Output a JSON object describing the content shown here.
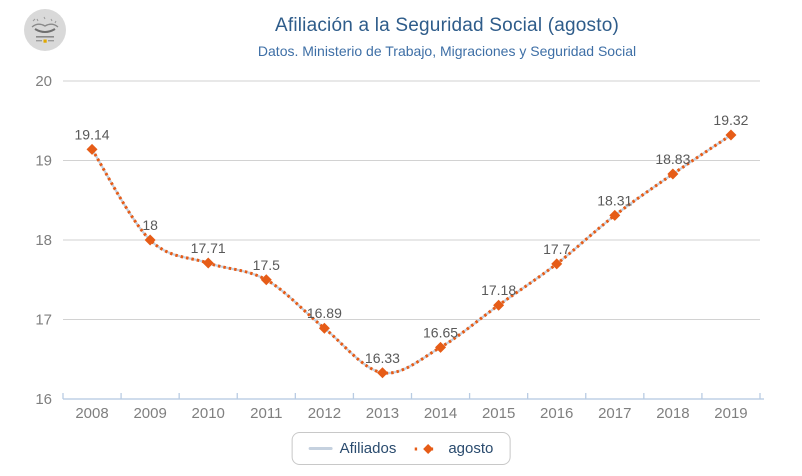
{
  "header": {
    "title": "Afiliación a la Seguridad Social (agosto)",
    "subtitle": "Datos. Ministerio de Trabajo, Migraciones y Seguridad Social"
  },
  "chart_data": {
    "type": "line",
    "title": "Afiliación a la Seguridad Social (agosto)",
    "subtitle": "Datos. Ministerio de Trabajo, Migraciones y Seguridad Social",
    "categories": [
      "2008",
      "2009",
      "2010",
      "2011",
      "2012",
      "2013",
      "2014",
      "2015",
      "2016",
      "2017",
      "2018",
      "2019"
    ],
    "series": [
      {
        "name": "Afiliados",
        "style": "solid-light",
        "values": [
          19.14,
          18,
          17.71,
          17.5,
          16.89,
          16.33,
          16.65,
          17.18,
          17.7,
          18.31,
          18.83,
          19.32
        ]
      },
      {
        "name": "agosto",
        "style": "dotted-diamond",
        "values": [
          19.14,
          18,
          17.71,
          17.5,
          16.89,
          16.33,
          16.65,
          17.18,
          17.7,
          18.31,
          18.83,
          19.32
        ]
      }
    ],
    "data_labels_visible": true,
    "ylim": [
      16,
      20
    ],
    "yticks": [
      16,
      17,
      18,
      19,
      20
    ],
    "grid": true,
    "legend_position": "bottom-center"
  },
  "colors": {
    "accent": "#e65c17",
    "afiliados_line": "#c5d1df",
    "title": "#2e5c8a",
    "subtitle": "#3e6fa6",
    "axis_labels": "#7f7f7f",
    "data_labels": "#595959",
    "gridline": "#d2d2d2",
    "axis_line": "#cfdcec",
    "tick": "#b9cce3",
    "legend_text": "#2a4b6e",
    "legend_border": "#c8c8c8",
    "logo_bg": "#d9d9d9",
    "logo_accent": "#e0a800"
  }
}
